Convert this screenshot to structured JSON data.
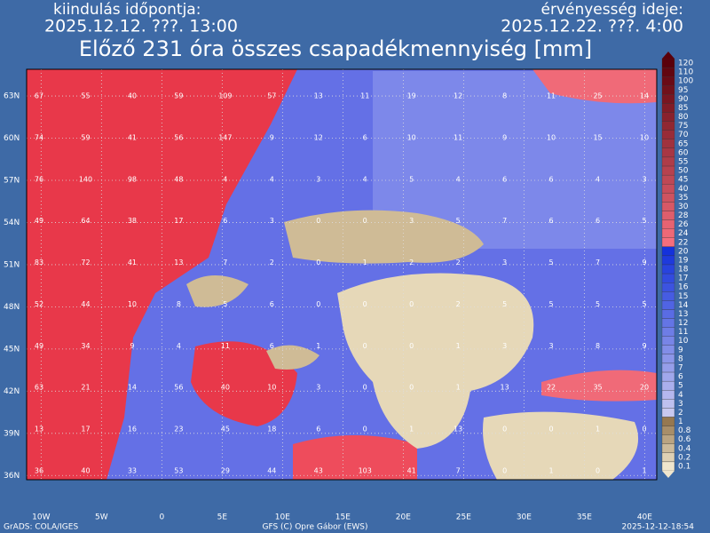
{
  "header": {
    "start_label": "kiindulás időpontja:",
    "start_time": "2025.12.12. ???. 13:00",
    "valid_label": "érvényesség ideje:",
    "valid_time": "2025.12.22. ???. 4:00",
    "title": "Előző 231 óra összes csapadékmennyiség [mm]"
  },
  "map": {
    "lat_labels": [
      {
        "value": 63,
        "label": "63N"
      },
      {
        "value": 60,
        "label": "60N"
      },
      {
        "value": 57,
        "label": "57N"
      },
      {
        "value": 54,
        "label": "54N"
      },
      {
        "value": 51,
        "label": "51N"
      },
      {
        "value": 48,
        "label": "48N"
      },
      {
        "value": 45,
        "label": "45N"
      },
      {
        "value": 42,
        "label": "42N"
      },
      {
        "value": 39,
        "label": "39N"
      },
      {
        "value": 36,
        "label": "36N"
      }
    ],
    "lon_labels": [
      {
        "value": -10,
        "label": "10W"
      },
      {
        "value": -5,
        "label": "5W"
      },
      0,
      {
        "value": 5,
        "label": "5E"
      },
      {
        "value": 10,
        "label": "10E"
      },
      {
        "value": 15,
        "label": "15E"
      },
      {
        "value": 20,
        "label": "20E"
      },
      {
        "value": 25,
        "label": "25E"
      },
      {
        "value": 30,
        "label": "30E"
      },
      {
        "value": 35,
        "label": "35E"
      },
      {
        "value": 40,
        "label": "40E"
      }
    ],
    "grid_values": [
      [
        67,
        55,
        40,
        59,
        109,
        57,
        13,
        11,
        19,
        12,
        8,
        11,
        25,
        14
      ],
      [
        74,
        59,
        41,
        56,
        147,
        9,
        12,
        6,
        10,
        11,
        9,
        10,
        15,
        10
      ],
      [
        76,
        140,
        98,
        48,
        4,
        4,
        3,
        4,
        5,
        4,
        6,
        6,
        4,
        3
      ],
      [
        49,
        64,
        38,
        17,
        6,
        3,
        0,
        0,
        3,
        5,
        7,
        6,
        6,
        5
      ],
      [
        83,
        72,
        41,
        13,
        7,
        2,
        0,
        1,
        2,
        2,
        3,
        5,
        7,
        9
      ],
      [
        52,
        44,
        10,
        8,
        5,
        6,
        0,
        0,
        0,
        2,
        5,
        5,
        5,
        5
      ],
      [
        49,
        34,
        9,
        4,
        11,
        6,
        1,
        0,
        0,
        1,
        3,
        3,
        8,
        9
      ],
      [
        63,
        21,
        14,
        56,
        40,
        10,
        3,
        0,
        0,
        1,
        13,
        22,
        35,
        20
      ],
      [
        13,
        17,
        16,
        23,
        45,
        18,
        6,
        0,
        1,
        13,
        0,
        0,
        1,
        0
      ],
      [
        36,
        40,
        33,
        53,
        29,
        44,
        43,
        103,
        41,
        7,
        0,
        1,
        0,
        1
      ]
    ]
  },
  "colorbar": {
    "levels": [
      120,
      110,
      100,
      95,
      90,
      85,
      80,
      75,
      70,
      65,
      60,
      55,
      50,
      45,
      40,
      35,
      30,
      28,
      26,
      24,
      22,
      20,
      19,
      18,
      17,
      16,
      15,
      14,
      13,
      12,
      11,
      10,
      9,
      8,
      7,
      6,
      5,
      4,
      3,
      2,
      1,
      0.8,
      0.6,
      0.4,
      0.2,
      0.1
    ]
  },
  "footer": {
    "left": "GrADS: COLA/IGES",
    "center": "GFS (C) Opre Gábor (EWS)",
    "right": "2025-12-12-18:54"
  }
}
